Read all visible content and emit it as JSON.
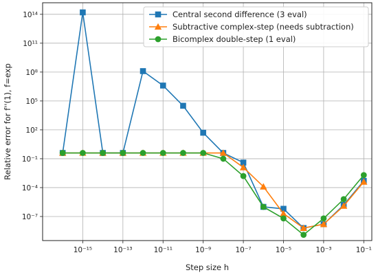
{
  "chart_data": {
    "type": "line",
    "title": "",
    "xlabel": "Step size h",
    "ylabel": "Relative error for f''(1), f=exp",
    "xscale": "log",
    "yscale": "log",
    "xlim_exp": [
      -17,
      -0.6
    ],
    "ylim_exp": [
      -9.5,
      15.2
    ],
    "grid": true,
    "legend_position": "top-right",
    "x_tick_exponents": [
      -15,
      -13,
      -11,
      -9,
      -7,
      -5,
      -3,
      -1
    ],
    "x_tick_labels": [
      "10⁻¹⁵",
      "10⁻¹³",
      "10⁻¹¹",
      "10⁻⁹",
      "10⁻⁷",
      "10⁻⁵",
      "10⁻³",
      "10⁻¹"
    ],
    "y_tick_exponents": [
      -7,
      -4,
      -1,
      2,
      5,
      8,
      11,
      14
    ],
    "y_tick_labels": [
      "10⁻⁷",
      "10⁻⁴",
      "10⁻¹",
      "10²",
      "10⁵",
      "10⁸",
      "10¹¹",
      "10¹⁴"
    ],
    "x_exp": [
      -16,
      -15,
      -14,
      -13,
      -12,
      -11,
      -10,
      -9,
      -8,
      -7,
      -6,
      -5,
      -4,
      -3,
      -2,
      -1
    ],
    "series": [
      {
        "name": "Central second difference (3 eval)",
        "color": "#1f77b4",
        "marker": "square",
        "y_exp": [
          -0.4,
          14.2,
          -0.4,
          -0.4,
          8.1,
          6.6,
          4.5,
          1.7,
          -0.4,
          -1.4,
          -6.0,
          -6.2,
          -8.2,
          -7.8,
          -5.8,
          -3.3
        ]
      },
      {
        "name": "Subtractive complex-step (needs subtraction)",
        "color": "#ff7f0e",
        "marker": "triangle",
        "y_exp": [
          -0.4,
          -0.4,
          -0.4,
          -0.4,
          -0.4,
          -0.4,
          -0.4,
          -0.4,
          -0.4,
          -1.9,
          -3.9,
          -6.7,
          -8.2,
          -7.8,
          -5.9,
          -3.4
        ]
      },
      {
        "name": "Bicomplex double-step (1 eval)",
        "color": "#2ca02c",
        "marker": "circle",
        "y_exp": [
          -0.4,
          -0.4,
          -0.4,
          -0.4,
          -0.4,
          -0.4,
          -0.4,
          -0.4,
          -1.0,
          -2.8,
          -6.0,
          -7.2,
          -8.9,
          -7.2,
          -5.2,
          -2.7
        ]
      }
    ]
  }
}
